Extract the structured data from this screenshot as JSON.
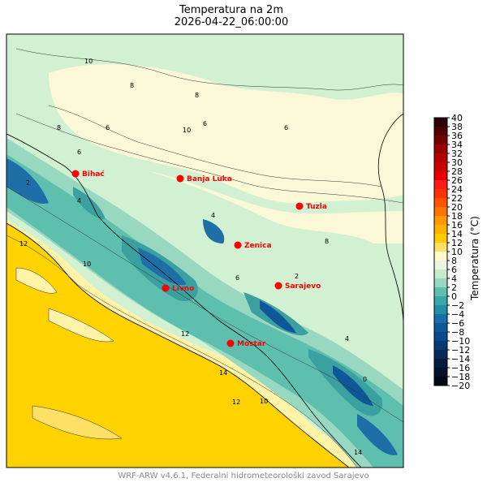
{
  "header": {
    "title": "Temperatura na 2m",
    "datetime": "2026-04-22_06:00:00"
  },
  "colorbar": {
    "label": "Temperatura (°C)",
    "ticks": [
      "40",
      "38",
      "36",
      "34",
      "32",
      "30",
      "28",
      "26",
      "24",
      "22",
      "20",
      "18",
      "16",
      "14",
      "12",
      "10",
      "8",
      "6",
      "4",
      "2",
      "0",
      "−2",
      "−4",
      "−6",
      "−8",
      "−10",
      "−12",
      "−14",
      "−16",
      "−18",
      "−20"
    ],
    "colors": [
      "#2b0000",
      "#4d0000",
      "#720000",
      "#990000",
      "#b30000",
      "#cc0000",
      "#e60000",
      "#ff1a1a",
      "#ff3300",
      "#ff5500",
      "#ff7300",
      "#ff9900",
      "#ffb300",
      "#ffcc00",
      "#ffe066",
      "#fff9cc",
      "#e8f8e0",
      "#c8ecc8",
      "#98d8c0",
      "#5fbfae",
      "#3aa7a7",
      "#238ea7",
      "#1370a8",
      "#0e589a",
      "#0a4a8a",
      "#083a72",
      "#072a58",
      "#051e40",
      "#03122a",
      "#000814"
    ]
  },
  "cities": [
    {
      "name": "Bihać"
    },
    {
      "name": "Banja Luka"
    },
    {
      "name": "Tuzla"
    },
    {
      "name": "Zenica"
    },
    {
      "name": "Livno"
    },
    {
      "name": "Sarajevo"
    },
    {
      "name": "Mostar"
    }
  ],
  "contour_labels": [
    "10",
    "8",
    "8",
    "6",
    "6",
    "4",
    "6",
    "10",
    "8",
    "6",
    "12",
    "10",
    "2",
    "4",
    "6",
    "8",
    "12",
    "12",
    "14",
    "10",
    "2",
    "4",
    "0",
    "14"
  ],
  "colors": {
    "warm_coast": "#ffd200",
    "sea_dark": "#ffcc00",
    "pale_green": "#d2f0d2",
    "cream": "#fbf8d8",
    "teal": "#7fcdb8",
    "dark_teal": "#3aa0a0",
    "blue": "#1e6fa8",
    "city_marker": "#ff0000"
  },
  "footer": {
    "credit": "WRF-ARW v4.6.1, Federalni hidrometeorološki zavod Sarajevo"
  }
}
